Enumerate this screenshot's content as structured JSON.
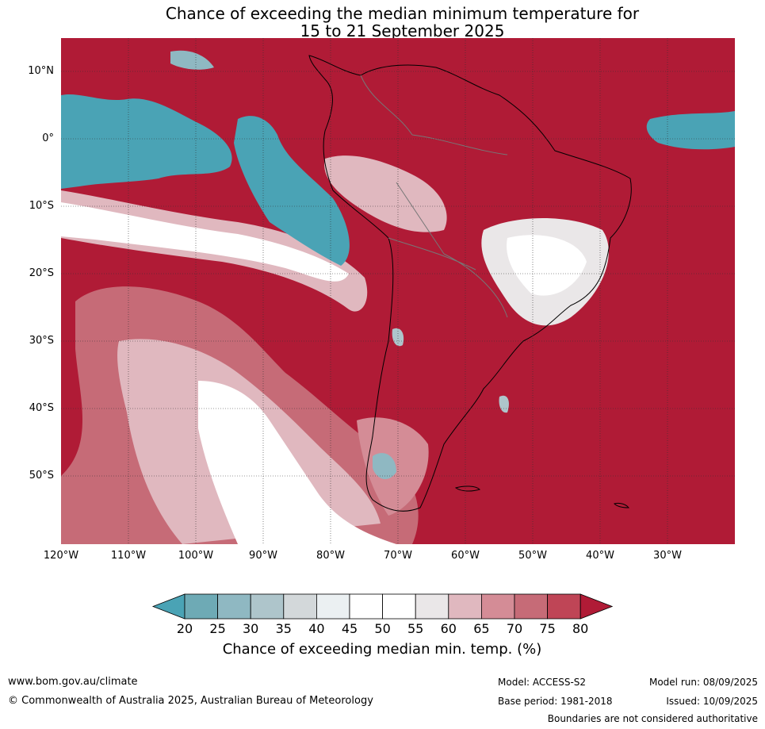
{
  "title": {
    "line1": "Chance of exceeding the median minimum temperature for",
    "line2": "15 to 21 September 2025"
  },
  "map": {
    "lat_ticks": [
      "10°N",
      "0°",
      "10°S",
      "20°S",
      "30°S",
      "40°S",
      "50°S"
    ],
    "lon_ticks": [
      "120°W",
      "110°W",
      "100°W",
      "90°W",
      "80°W",
      "70°W",
      "60°W",
      "50°W",
      "40°W",
      "30°W"
    ],
    "colors": {
      "high": "#b01b36",
      "low": "#4aa3b5",
      "neutral": "#ffffff"
    }
  },
  "colorbar": {
    "labels": [
      "20",
      "25",
      "30",
      "35",
      "40",
      "45",
      "50",
      "55",
      "60",
      "65",
      "70",
      "75",
      "80"
    ],
    "colors": [
      "#4aa3b5",
      "#6eaab5",
      "#8fb8c2",
      "#aec5cb",
      "#d3d8da",
      "#ebf0f2",
      "#ffffff",
      "#ffffff",
      "#eae7e8",
      "#e0b8bf",
      "#d48c96",
      "#c66b77",
      "#bf4556",
      "#b01b36"
    ],
    "title": "Chance of exceeding median min. temp. (%)"
  },
  "footer": {
    "website": "www.bom.gov.au/climate",
    "copyright": "© Commonwealth of Australia 2025, Australian Bureau of Meteorology",
    "model": "Model: ACCESS-S2",
    "base_period": "Base period: 1981-2018",
    "model_run": "Model run: 08/09/2025",
    "issued": "Issued: 10/09/2025",
    "disclaimer": "Boundaries are not considered authoritative"
  }
}
